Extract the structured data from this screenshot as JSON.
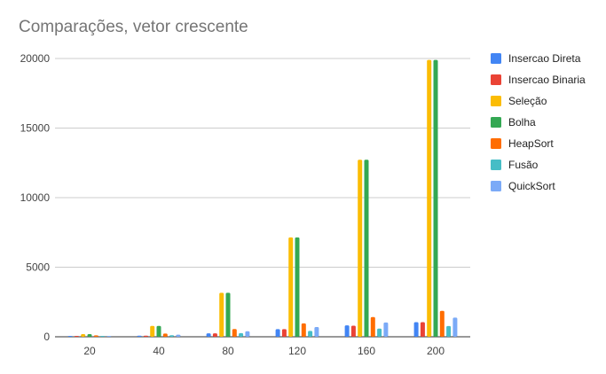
{
  "chart_data": {
    "type": "bar",
    "title": "Comparações, vetor crescente",
    "xlabel": "",
    "ylabel": "",
    "categories": [
      "20",
      "40",
      "80",
      "120",
      "160",
      "200"
    ],
    "ylim": [
      0,
      20000
    ],
    "yticks": [
      0,
      5000,
      10000,
      15000,
      20000
    ],
    "grid": true,
    "legend_position": "right",
    "series": [
      {
        "name": "Insercao Direta",
        "color": "#4285F4",
        "values": [
          40,
          80,
          250,
          550,
          820,
          1050
        ]
      },
      {
        "name": "Insercao Binaria",
        "color": "#EA4335",
        "values": [
          40,
          80,
          250,
          550,
          800,
          1050
        ]
      },
      {
        "name": "Seleção",
        "color": "#FBBC04",
        "values": [
          190,
          780,
          3160,
          7140,
          12720,
          19900
        ]
      },
      {
        "name": "Bolha",
        "color": "#34A853",
        "values": [
          190,
          780,
          3160,
          7140,
          12720,
          19900
        ]
      },
      {
        "name": "HeapSort",
        "color": "#FF6D01",
        "values": [
          100,
          230,
          560,
          960,
          1420,
          1860
        ]
      },
      {
        "name": "Fusão",
        "color": "#46BDC6",
        "values": [
          50,
          110,
          260,
          420,
          590,
          770
        ]
      },
      {
        "name": "QuickSort",
        "color": "#7BAAF7",
        "values": [
          60,
          150,
          400,
          700,
          1030,
          1380
        ]
      }
    ]
  }
}
